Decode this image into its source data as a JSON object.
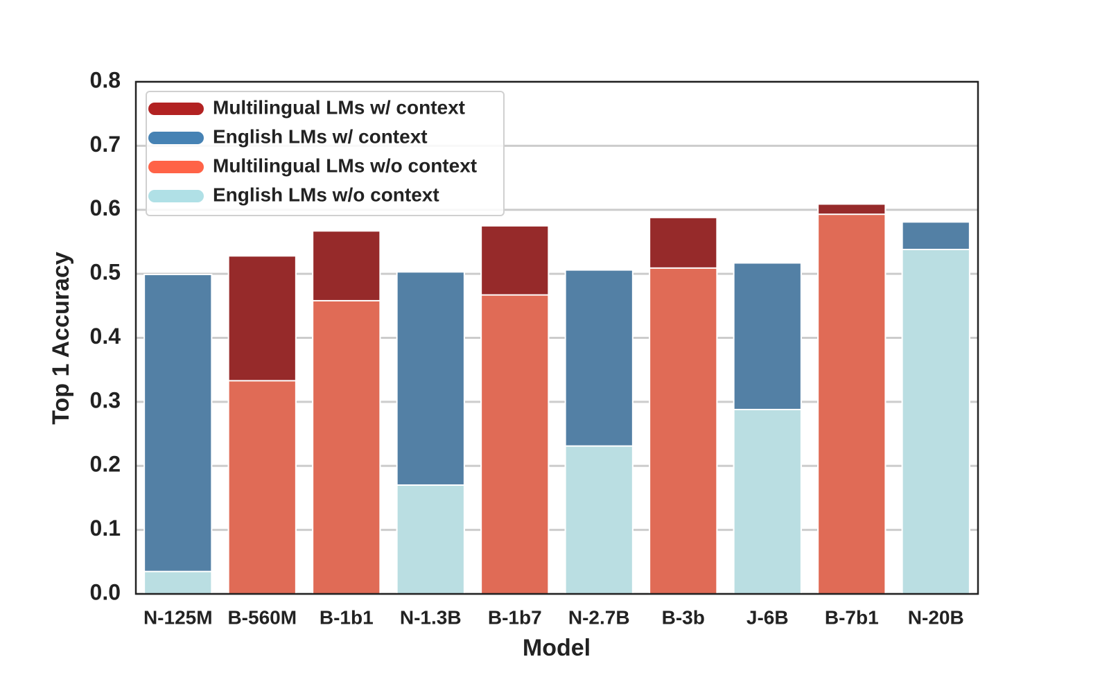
{
  "chart_data": {
    "type": "bar",
    "overlay": true,
    "xlabel": "Model",
    "ylabel": "Top 1 Accuracy",
    "categories": [
      "N-125M",
      "B-560M",
      "B-1b1",
      "N-1.3B",
      "B-1b7",
      "N-2.7B",
      "B-3b",
      "J-6B",
      "B-7b1",
      "N-20B"
    ],
    "series": [
      {
        "name": "Multilingual LMs w/ context",
        "color": "#b22222",
        "values": [
          null,
          0.528,
          0.567,
          null,
          0.575,
          null,
          0.588,
          null,
          0.609,
          null
        ]
      },
      {
        "name": "English LMs w/ context",
        "color": "#4682b4",
        "values": [
          0.499,
          null,
          null,
          0.503,
          null,
          0.506,
          null,
          0.517,
          null,
          0.581
        ]
      },
      {
        "name": "Multilingual LMs w/o context",
        "color": "#ff6347",
        "values": [
          null,
          0.333,
          0.458,
          null,
          0.467,
          null,
          0.509,
          null,
          0.593,
          null
        ]
      },
      {
        "name": "English LMs w/o context",
        "color": "#b0e0e6",
        "values": [
          0.035,
          null,
          null,
          0.17,
          null,
          0.231,
          null,
          0.288,
          null,
          0.538
        ]
      }
    ],
    "ylim": [
      0,
      0.8
    ],
    "yticks": [
      {
        "value": 0,
        "label": "0.0"
      },
      0.1,
      0.2,
      0.3,
      0.4,
      0.5,
      0.6,
      0.7,
      0.8
    ],
    "grid": true,
    "legend": "upper left"
  }
}
